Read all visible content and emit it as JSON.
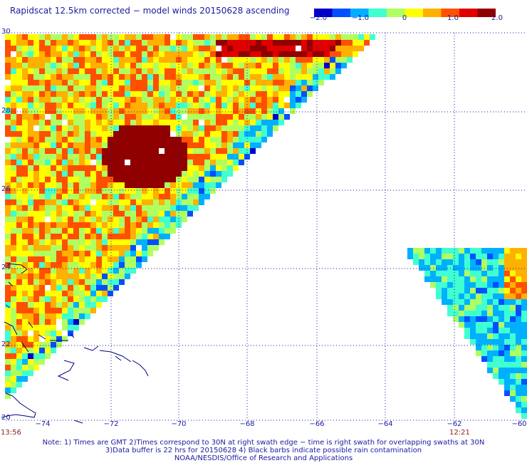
{
  "title": "Rapidscat 12.5km corrected − model winds 20150628 ascending",
  "colorbar": {
    "labels": [
      "−2.0",
      "−1.0",
      "0",
      "1.0",
      "2.0"
    ],
    "colors": [
      "#0000c8",
      "#0050ff",
      "#00b0ff",
      "#40ffd0",
      "#b0ff60",
      "#ffff00",
      "#ffb000",
      "#ff5000",
      "#e00000",
      "#900000"
    ]
  },
  "axes": {
    "lat_labels": [
      "30",
      "28",
      "26",
      "24",
      "22",
      "20"
    ],
    "lon_labels": [
      "−74",
      "−72",
      "−70",
      "−68",
      "−66",
      "−64",
      "−62",
      "−60"
    ]
  },
  "times": {
    "left": "13:56",
    "right": "12:21"
  },
  "notes": [
    "Note: 1) Times are GMT 2)Times correspond to 30N at right swath edge − time is right swath for overlapping swaths at 30N",
    "3)Data buffer is 22 hrs for 20150628 4) Black barbs indicate possible rain contamination",
    "NOAA/NESDIS/Office of Research and Applications"
  ]
}
